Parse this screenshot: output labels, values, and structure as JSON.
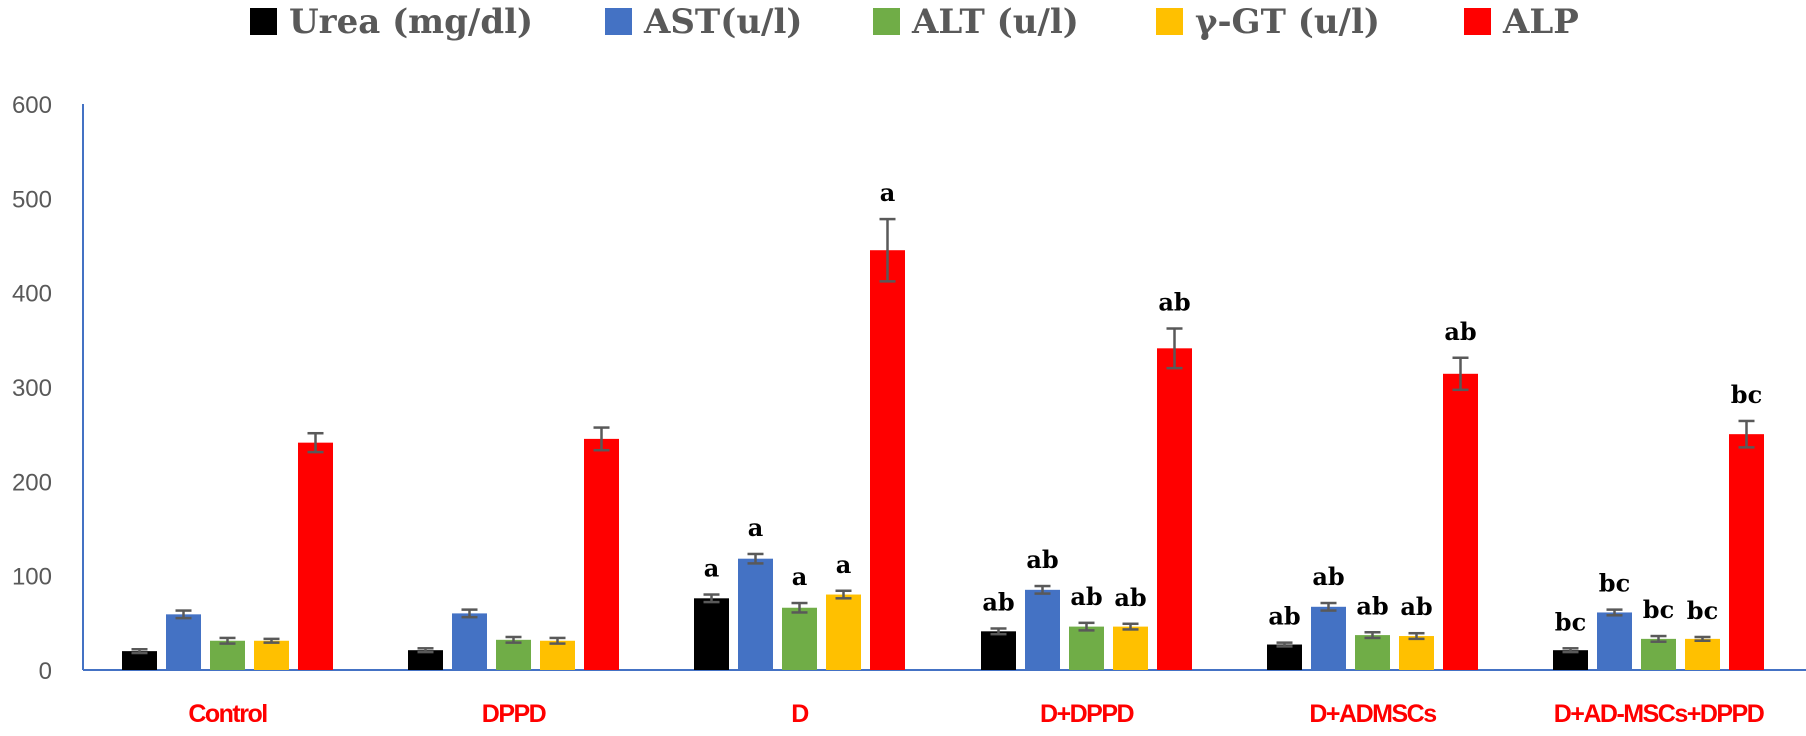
{
  "chart_data": {
    "type": "bar",
    "title": "",
    "xlabel": "",
    "ylabel": "",
    "ylim": [
      0,
      600
    ],
    "yticks": [
      0,
      100,
      200,
      300,
      400,
      500,
      600
    ],
    "grid": false,
    "legend_position": "top",
    "categories": [
      "Control",
      "DPPD",
      "D",
      "D+DPPD",
      "D+ADMSCs",
      "D+AD-MSCs+DPPD"
    ],
    "series": [
      {
        "name": "Urea (mg/dl)",
        "color": "#000000",
        "values": [
          20,
          21,
          76,
          41,
          27,
          21
        ],
        "errors": [
          2,
          2,
          4,
          3,
          2,
          2
        ],
        "labels": [
          "",
          "",
          "a",
          "ab",
          "ab",
          "bc"
        ]
      },
      {
        "name": "AST(u/l)",
        "color": "#4472c4",
        "values": [
          59,
          60,
          118,
          85,
          67,
          61
        ],
        "errors": [
          4,
          4,
          5,
          4,
          4,
          3
        ],
        "labels": [
          "",
          "",
          "a",
          "ab",
          "ab",
          "bc"
        ]
      },
      {
        "name": "ALT (u/l)",
        "color": "#70ad47",
        "values": [
          31,
          32,
          66,
          46,
          37,
          33
        ],
        "errors": [
          3,
          3,
          5,
          4,
          3,
          3
        ],
        "labels": [
          "",
          "",
          "a",
          "ab",
          "ab",
          "bc"
        ]
      },
      {
        "name": "γ-GT (u/l)",
        "color": "#ffc000",
        "values": [
          31,
          31,
          80,
          46,
          36,
          33
        ],
        "errors": [
          2,
          3,
          4,
          3,
          3,
          2
        ],
        "labels": [
          "",
          "",
          "a",
          "ab",
          "ab",
          "bc"
        ]
      },
      {
        "name": "ALP",
        "color": "#ff0000",
        "values": [
          241,
          245,
          445,
          341,
          314,
          250
        ],
        "errors": [
          10,
          12,
          33,
          21,
          17,
          14
        ],
        "labels": [
          "",
          "",
          "a",
          "ab",
          "ab",
          "bc"
        ]
      }
    ]
  },
  "colors": {
    "axis": "#4472c4",
    "tick_text": "#595959",
    "category_text": "#ff0000",
    "error_bar": "#595959"
  }
}
